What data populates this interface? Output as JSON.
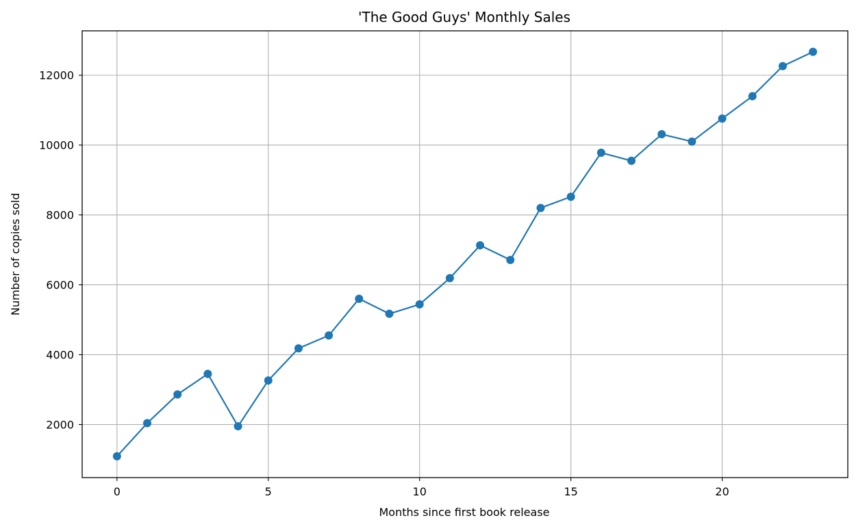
{
  "chart_data": {
    "type": "line",
    "title": "'The Good Guys' Monthly Sales",
    "xlabel": "Months since first book release",
    "ylabel": "Number of copies sold",
    "xlim": [
      -1.15,
      24.15
    ],
    "ylim": [
      480,
      13270
    ],
    "xticks": [
      0,
      5,
      10,
      15,
      20
    ],
    "yticks": [
      2000,
      4000,
      6000,
      8000,
      10000,
      12000
    ],
    "grid": true,
    "line_color": "#1f77b4",
    "marker": "circle",
    "series": [
      {
        "x": [
          0,
          1,
          2,
          3,
          4,
          5,
          6,
          7,
          8,
          9,
          10,
          11,
          12,
          13,
          14,
          15,
          16,
          17,
          18,
          19,
          20,
          21,
          22,
          23
        ],
        "values": [
          1090,
          2040,
          2860,
          3450,
          1950,
          3260,
          4180,
          4550,
          5600,
          5170,
          5440,
          6190,
          7130,
          6710,
          8200,
          8520,
          9780,
          9550,
          10310,
          10100,
          10760,
          11400,
          12260,
          12670
        ]
      }
    ]
  }
}
